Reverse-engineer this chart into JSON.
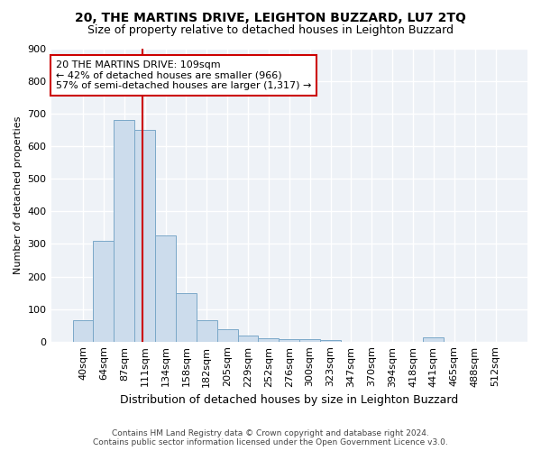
{
  "title": "20, THE MARTINS DRIVE, LEIGHTON BUZZARD, LU7 2TQ",
  "subtitle": "Size of property relative to detached houses in Leighton Buzzard",
  "xlabel": "Distribution of detached houses by size in Leighton Buzzard",
  "ylabel": "Number of detached properties",
  "bar_labels": [
    "40sqm",
    "64sqm",
    "87sqm",
    "111sqm",
    "134sqm",
    "158sqm",
    "182sqm",
    "205sqm",
    "229sqm",
    "252sqm",
    "276sqm",
    "300sqm",
    "323sqm",
    "347sqm",
    "370sqm",
    "394sqm",
    "418sqm",
    "441sqm",
    "465sqm",
    "488sqm",
    "512sqm"
  ],
  "bar_values": [
    65,
    310,
    680,
    650,
    325,
    150,
    65,
    38,
    18,
    10,
    8,
    8,
    5,
    0,
    0,
    0,
    0,
    12,
    0,
    0,
    0
  ],
  "bar_color": "#ccdcec",
  "bar_edge_color": "#7aa8c8",
  "vline_color": "#cc0000",
  "vline_x_index": 2.87,
  "annotation_text": "20 THE MARTINS DRIVE: 109sqm\n← 42% of detached houses are smaller (966)\n57% of semi-detached houses are larger (1,317) →",
  "annotation_box_facecolor": "#ffffff",
  "annotation_box_edgecolor": "#cc0000",
  "ylim": [
    0,
    900
  ],
  "yticks": [
    0,
    100,
    200,
    300,
    400,
    500,
    600,
    700,
    800,
    900
  ],
  "bg_color": "#ffffff",
  "plot_bg_color": "#eef2f7",
  "grid_color": "#ffffff",
  "footnote": "Contains HM Land Registry data © Crown copyright and database right 2024.\nContains public sector information licensed under the Open Government Licence v3.0.",
  "title_fontsize": 10,
  "subtitle_fontsize": 9,
  "ylabel_fontsize": 8,
  "xlabel_fontsize": 9,
  "tick_fontsize": 8,
  "annot_fontsize": 8
}
